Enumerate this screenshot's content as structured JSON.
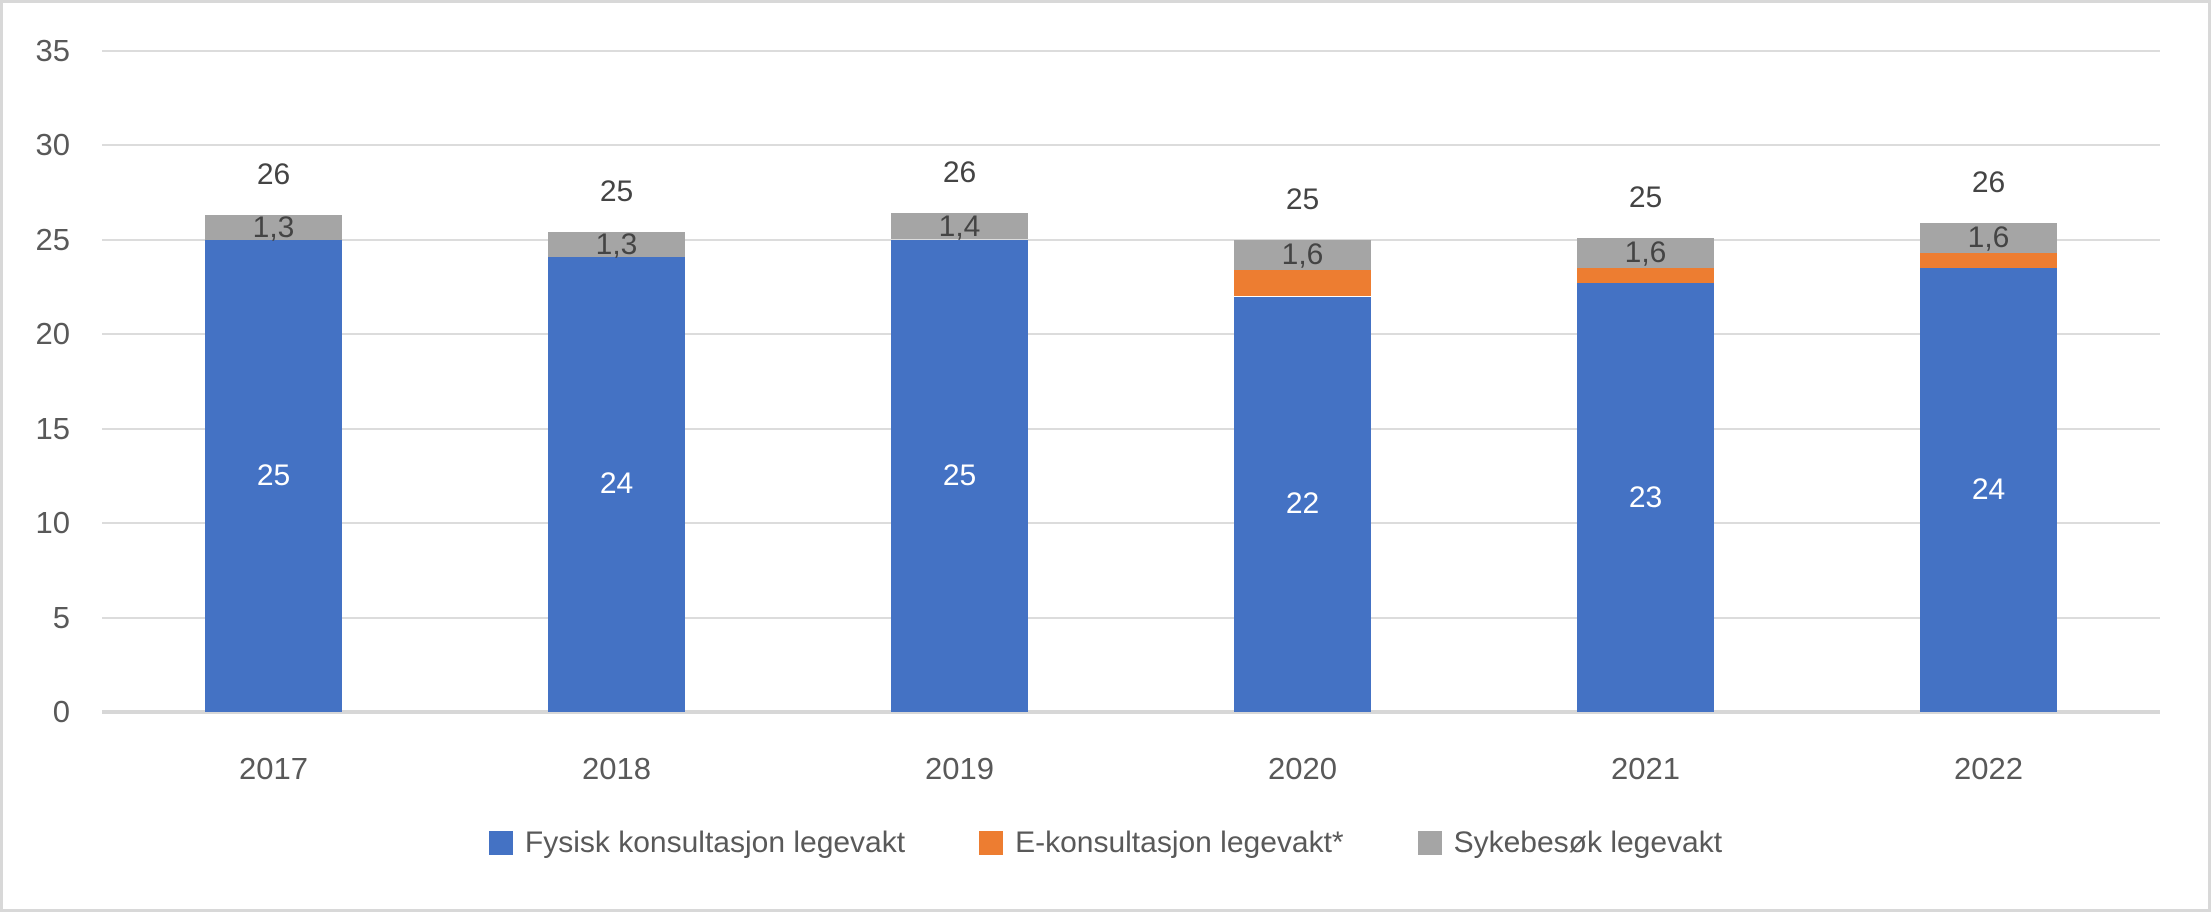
{
  "chart_data": {
    "type": "bar",
    "stacked": true,
    "title": "",
    "xlabel": "",
    "ylabel": "",
    "categories": [
      "2017",
      "2018",
      "2019",
      "2020",
      "2021",
      "2022"
    ],
    "series": [
      {
        "name": "Fysisk konsultasjon legevakt",
        "color": "#4472c4",
        "label_color": "#ffffff",
        "values": [
          25.0,
          24.1,
          25.0,
          22.0,
          22.7,
          23.5
        ],
        "labels": [
          "25",
          "24",
          "25",
          "22",
          "23",
          "24"
        ]
      },
      {
        "name": "E-konsultasjon legevakt*",
        "color": "#ed7d31",
        "label_color": "#444444",
        "values": [
          0,
          0,
          0,
          1.4,
          0.8,
          0.8
        ],
        "labels": [
          "",
          "",
          "",
          "",
          "",
          ""
        ]
      },
      {
        "name": "Sykebesøk legevakt",
        "color": "#a5a5a5",
        "label_color": "#444444",
        "values": [
          1.3,
          1.3,
          1.4,
          1.6,
          1.6,
          1.6
        ],
        "labels": [
          "1,3",
          "1,3",
          "1,4",
          "1,6",
          "1,6",
          "1,6"
        ]
      }
    ],
    "totals": [
      "26",
      "25",
      "26",
      "25",
      "25",
      "26"
    ],
    "ylim": [
      0,
      35
    ],
    "ytick_step": 5,
    "yticks": [
      "0",
      "5",
      "10",
      "15",
      "20",
      "25",
      "30",
      "35"
    ],
    "grid": true,
    "legend_position": "bottom"
  },
  "colors": {
    "background": "#ffffff",
    "gridline": "#dcdcdc",
    "axis_line": "#d7d7d7",
    "tick_text": "#595959",
    "data_label_dark": "#444444",
    "data_label_light": "#ffffff",
    "border": "#d8d8d8"
  }
}
